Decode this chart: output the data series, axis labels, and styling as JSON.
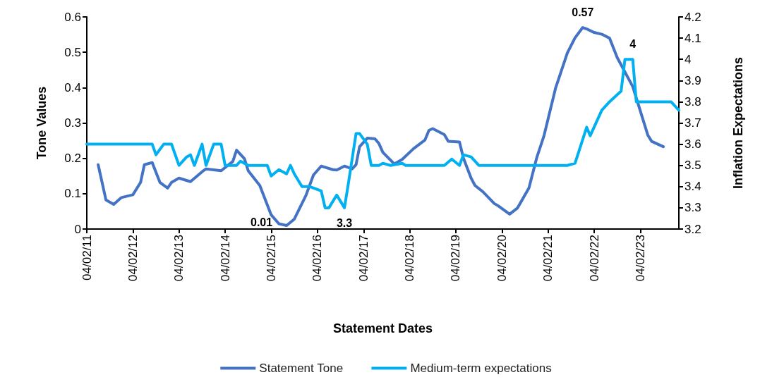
{
  "chart_data": {
    "type": "line",
    "xlabel": "Statement Dates",
    "ylabel": "Tone Values",
    "y2label": "Inflation Expectations",
    "xlim": [
      "2011-04-02",
      "2024-02"
    ],
    "xticks": [
      {
        "value": "2011-04-02",
        "label": "04/02/11"
      },
      {
        "value": "2012-04-02",
        "label": "04/02/12"
      },
      {
        "value": "2013-04-02",
        "label": "04/02/13"
      },
      {
        "value": "2014-04-02",
        "label": "04/02/14"
      },
      {
        "value": "2015-04-02",
        "label": "04/02/15"
      },
      {
        "value": "2016-04-02",
        "label": "04/02/16"
      },
      {
        "value": "2017-04-02",
        "label": "04/02/17"
      },
      {
        "value": "2018-04-02",
        "label": "04/02/18"
      },
      {
        "value": "2019-04-02",
        "label": "04/02/19"
      },
      {
        "value": "2020-04-02",
        "label": "04/02/20"
      },
      {
        "value": "2021-04-02",
        "label": "04/02/21"
      },
      {
        "value": "2022-04-02",
        "label": "04/02/22"
      },
      {
        "value": "2023-04-02",
        "label": "04/02/23"
      }
    ],
    "ylim": [
      0,
      0.6
    ],
    "yticks": [
      0,
      0.1,
      0.2,
      0.3,
      0.4,
      0.5,
      0.6
    ],
    "y2lim": [
      3.2,
      4.2
    ],
    "y2ticks": [
      3.2,
      3.3,
      3.4,
      3.5,
      3.6,
      3.7,
      3.8,
      3.9,
      4,
      4.1,
      4.2
    ],
    "grid": false,
    "legend": "bottom",
    "marker": "none",
    "line_style": "solid",
    "series": [
      {
        "name": "Statement Tone",
        "color": "#4472c4",
        "x": [
          "2011-07",
          "2011-09",
          "2011-11",
          "2012-01",
          "2012-04",
          "2012-06",
          "2012-07",
          "2012-09",
          "2012-11",
          "2013-01",
          "2013-02",
          "2013-04",
          "2013-07",
          "2013-10",
          "2013-11",
          "2014-03",
          "2014-06",
          "2014-07",
          "2014-09",
          "2014-10",
          "2015-01",
          "2015-04",
          "2015-06",
          "2015-08",
          "2015-10",
          "2016-01",
          "2016-03",
          "2016-05",
          "2016-08",
          "2016-09",
          "2016-11",
          "2017-01",
          "2017-02",
          "2017-03",
          "2017-05",
          "2017-07",
          "2017-08",
          "2017-09",
          "2017-12",
          "2018-02",
          "2018-05",
          "2018-08",
          "2018-09",
          "2018-10",
          "2019-01",
          "2019-02",
          "2019-05",
          "2019-06",
          "2019-08",
          "2019-09",
          "2019-11",
          "2020-02",
          "2020-03",
          "2020-06",
          "2020-08",
          "2020-09",
          "2020-11",
          "2021-01",
          "2021-03",
          "2021-06",
          "2021-09",
          "2021-11",
          "2022-01",
          "2022-02",
          "2022-04",
          "2022-06",
          "2022-08",
          "2022-10",
          "2023-02",
          "2023-06",
          "2023-07",
          "2023-10"
        ],
        "values": [
          0.182,
          0.082,
          0.07,
          0.089,
          0.097,
          0.132,
          0.182,
          0.188,
          0.132,
          0.116,
          0.132,
          0.144,
          0.134,
          0.162,
          0.17,
          0.165,
          0.191,
          0.223,
          0.199,
          0.165,
          0.123,
          0.04,
          0.015,
          0.01,
          0.028,
          0.095,
          0.153,
          0.178,
          0.168,
          0.167,
          0.178,
          0.17,
          0.182,
          0.233,
          0.257,
          0.255,
          0.242,
          0.217,
          0.184,
          0.197,
          0.227,
          0.252,
          0.279,
          0.284,
          0.267,
          0.248,
          0.246,
          0.201,
          0.144,
          0.123,
          0.106,
          0.072,
          0.066,
          0.042,
          0.059,
          0.078,
          0.116,
          0.201,
          0.265,
          0.4,
          0.498,
          0.541,
          0.57,
          0.566,
          0.556,
          0.551,
          0.54,
          0.485,
          0.403,
          0.265,
          0.248,
          0.233
        ],
        "value_labels": [
          null,
          null,
          null,
          null,
          null,
          null,
          null,
          null,
          null,
          null,
          null,
          null,
          null,
          null,
          null,
          null,
          null,
          null,
          null,
          null,
          null,
          null,
          null,
          "0.01",
          null,
          null,
          null,
          null,
          null,
          null,
          null,
          null,
          null,
          null,
          null,
          null,
          null,
          null,
          null,
          null,
          null,
          null,
          null,
          null,
          null,
          null,
          null,
          null,
          null,
          null,
          null,
          null,
          null,
          null,
          null,
          null,
          null,
          null,
          null,
          null,
          null,
          null,
          "0.57",
          null,
          null,
          null,
          null,
          null,
          null,
          null,
          null,
          null
        ]
      },
      {
        "name": "Medium-term expectations",
        "color": "#00b0f0",
        "axis": "y2",
        "x": [
          "2011-04-02",
          "2012-09",
          "2012-10",
          "2012-12",
          "2013-02",
          "2013-04",
          "2013-06",
          "2013-07",
          "2013-08",
          "2013-10",
          "2013-11",
          "2014-01",
          "2014-03",
          "2014-04",
          "2014-07",
          "2014-08",
          "2014-10",
          "2015-03",
          "2015-04",
          "2015-06",
          "2015-08",
          "2015-09",
          "2015-10",
          "2015-12",
          "2016-02",
          "2016-05",
          "2016-06",
          "2016-07",
          "2016-09",
          "2016-11",
          "2016-12",
          "2017-02",
          "2017-03",
          "2017-05",
          "2017-06",
          "2017-08",
          "2017-09",
          "2017-11",
          "2018-02",
          "2018-03",
          "2019-01",
          "2019-03",
          "2019-05",
          "2019-06",
          "2019-08",
          "2019-10",
          "2021-09",
          "2021-11",
          "2022-02",
          "2022-03",
          "2022-06",
          "2022-08",
          "2022-11",
          "2022-12",
          "2023-02",
          "2023-03",
          "2023-12",
          "2024-02"
        ],
        "values": [
          3.6,
          3.6,
          3.55,
          3.6,
          3.6,
          3.5,
          3.54,
          3.55,
          3.5,
          3.6,
          3.5,
          3.6,
          3.6,
          3.5,
          3.5,
          3.52,
          3.5,
          3.5,
          3.45,
          3.48,
          3.46,
          3.5,
          3.46,
          3.4,
          3.4,
          3.38,
          3.3,
          3.3,
          3.36,
          3.3,
          3.41,
          3.65,
          3.65,
          3.6,
          3.5,
          3.5,
          3.51,
          3.5,
          3.51,
          3.5,
          3.5,
          3.53,
          3.5,
          3.55,
          3.54,
          3.5,
          3.5,
          3.51,
          3.68,
          3.64,
          3.76,
          3.8,
          3.85,
          4.0,
          4.0,
          3.8,
          3.8,
          3.76
        ],
        "value_labels": [
          null,
          null,
          null,
          null,
          null,
          null,
          null,
          null,
          null,
          null,
          null,
          null,
          null,
          null,
          null,
          null,
          null,
          null,
          null,
          null,
          null,
          null,
          null,
          null,
          null,
          null,
          null,
          null,
          null,
          "3.3",
          null,
          null,
          null,
          null,
          null,
          null,
          null,
          null,
          null,
          null,
          null,
          null,
          null,
          null,
          null,
          null,
          null,
          null,
          null,
          null,
          null,
          null,
          null,
          null,
          "4",
          null,
          null,
          null
        ]
      }
    ]
  }
}
